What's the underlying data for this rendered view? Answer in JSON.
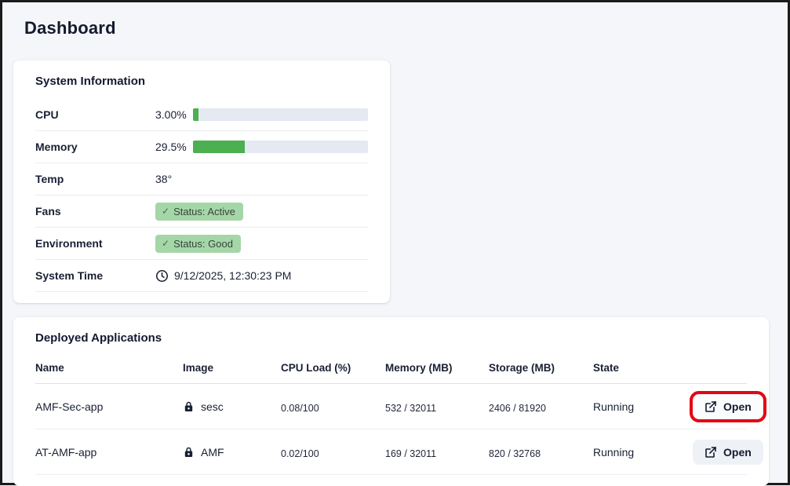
{
  "colors": {
    "green": "#4caf50",
    "badge_bg": "#a5d6a7",
    "annotation_red": "#e30613",
    "track": "#e4e9f2"
  },
  "page": {
    "title": "Dashboard"
  },
  "system_info": {
    "title": "System Information",
    "rows": [
      {
        "label": "CPU",
        "value_text": "3.00%",
        "percent": 3
      },
      {
        "label": "Memory",
        "value_text": "29.5%",
        "percent": 29.5
      },
      {
        "label": "Temp",
        "value_text": "38°"
      },
      {
        "label": "Fans",
        "value_text": "Status: Active",
        "check": "✓"
      },
      {
        "label": "Environment",
        "value_text": "Status: Good",
        "check": "✓"
      },
      {
        "label": "System Time",
        "value_text": "9/12/2025, 12:30:23 PM"
      }
    ]
  },
  "applications": {
    "title": "Deployed Applications",
    "columns": {
      "name": "Name",
      "image": "Image",
      "cpu": "CPU Load (%)",
      "memory": "Memory (MB)",
      "storage": "Storage (MB)",
      "state": "State"
    },
    "open_label": "Open",
    "rows": [
      {
        "name": "AMF-Sec-app",
        "image": "sesc",
        "cpu": {
          "text": "0.08/100",
          "percent": 0.08
        },
        "memory": {
          "text": "532 / 32011",
          "percent": 1.7
        },
        "storage": {
          "text": "2406 / 81920",
          "percent": 2.9
        },
        "state": "Running",
        "highlighted": true
      },
      {
        "name": "AT-AMF-app",
        "image": "AMF",
        "cpu": {
          "text": "0.02/100",
          "percent": 0.02
        },
        "memory": {
          "text": "169 / 32011",
          "percent": 0.6
        },
        "storage": {
          "text": "820 / 32768",
          "percent": 2.5
        },
        "state": "Running",
        "highlighted": false
      }
    ]
  }
}
